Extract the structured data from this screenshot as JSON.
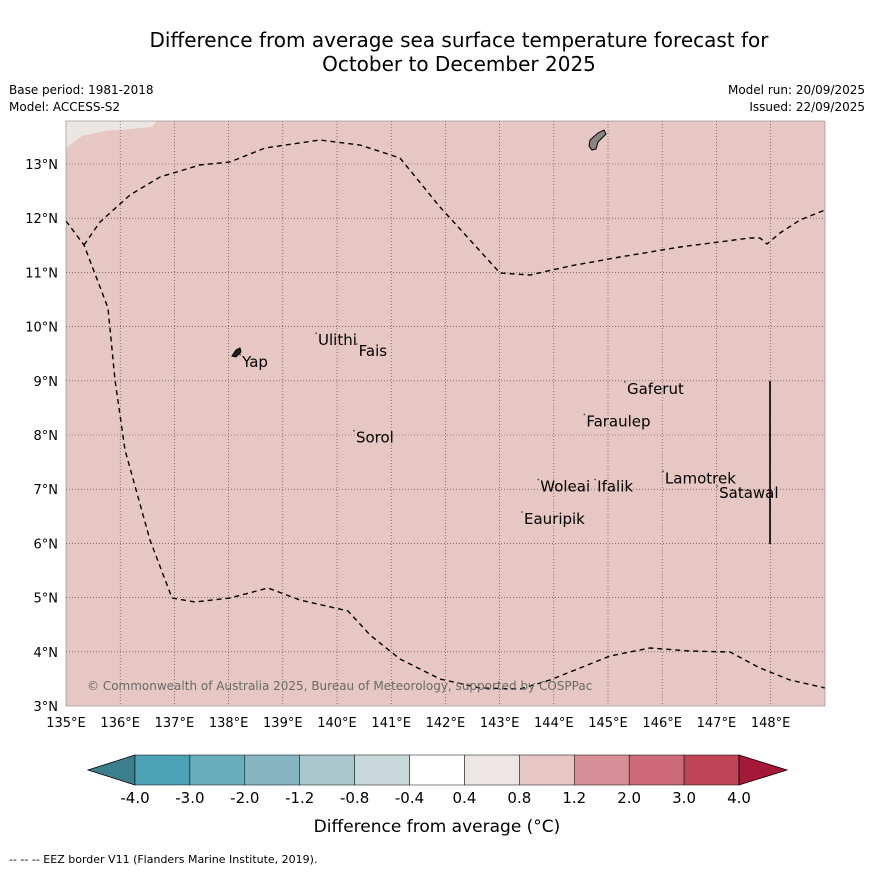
{
  "header": {
    "title_line1": "Difference from average sea surface temperature forecast for",
    "title_line2": "October to December 2025",
    "base_period": "Base period: 1981-2018",
    "model": "Model: ACCESS-S2",
    "model_run": "Model run: 20/09/2025",
    "issued": "Issued: 22/09/2025"
  },
  "map": {
    "lon_labels": [
      "135°E",
      "136°E",
      "137°E",
      "138°E",
      "139°E",
      "140°E",
      "141°E",
      "142°E",
      "143°E",
      "144°E",
      "145°E",
      "146°E",
      "147°E",
      "148°E"
    ],
    "lat_labels": [
      "3°N",
      "4°N",
      "5°N",
      "6°N",
      "7°N",
      "8°N",
      "9°N",
      "10°N",
      "11°N",
      "12°N",
      "13°N"
    ],
    "fill_color": "#e6c7c3",
    "fill_color_light": "#ece6e3",
    "places": [
      {
        "name": "Yap",
        "lon": 138.25,
        "lat": 9.35
      },
      {
        "name": "Ulithi",
        "lon": 139.65,
        "lat": 9.75
      },
      {
        "name": "Fais",
        "lon": 140.4,
        "lat": 9.55
      },
      {
        "name": "Sorol",
        "lon": 140.35,
        "lat": 7.95
      },
      {
        "name": "Gaferut",
        "lon": 145.35,
        "lat": 8.85
      },
      {
        "name": "Faraulep",
        "lon": 144.6,
        "lat": 8.25
      },
      {
        "name": "Woleai",
        "lon": 143.75,
        "lat": 7.05
      },
      {
        "name": "Ifalik",
        "lon": 144.8,
        "lat": 7.05
      },
      {
        "name": "Lamotrek",
        "lon": 146.05,
        "lat": 7.2
      },
      {
        "name": "Satawal",
        "lon": 147.05,
        "lat": 6.93
      },
      {
        "name": "Eauripik",
        "lon": 143.45,
        "lat": 6.45
      }
    ],
    "copyright": "© Commonwealth of Australia 2025, Bureau of Meteorology, supported by COSPPac"
  },
  "legend": {
    "colors": [
      "#3c7f8c",
      "#4aa2b4",
      "#6aaebd",
      "#88b5c2",
      "#a9c7cd",
      "#c8d8db",
      "#ffffff",
      "#ede6e4",
      "#e6c7c3",
      "#d68f96",
      "#cc6a77",
      "#bf4556",
      "#a41838"
    ],
    "tick_labels": [
      "-4.0",
      "-3.0",
      "-2.0",
      "-1.2",
      "-0.8",
      "-0.4",
      "0.4",
      "0.8",
      "1.2",
      "2.0",
      "3.0",
      "4.0"
    ],
    "label": "Difference from average (°C)"
  },
  "footer": {
    "eez_note": "--  --  -- EEZ border V11 (Flanders Marine Institute, 2019)."
  }
}
